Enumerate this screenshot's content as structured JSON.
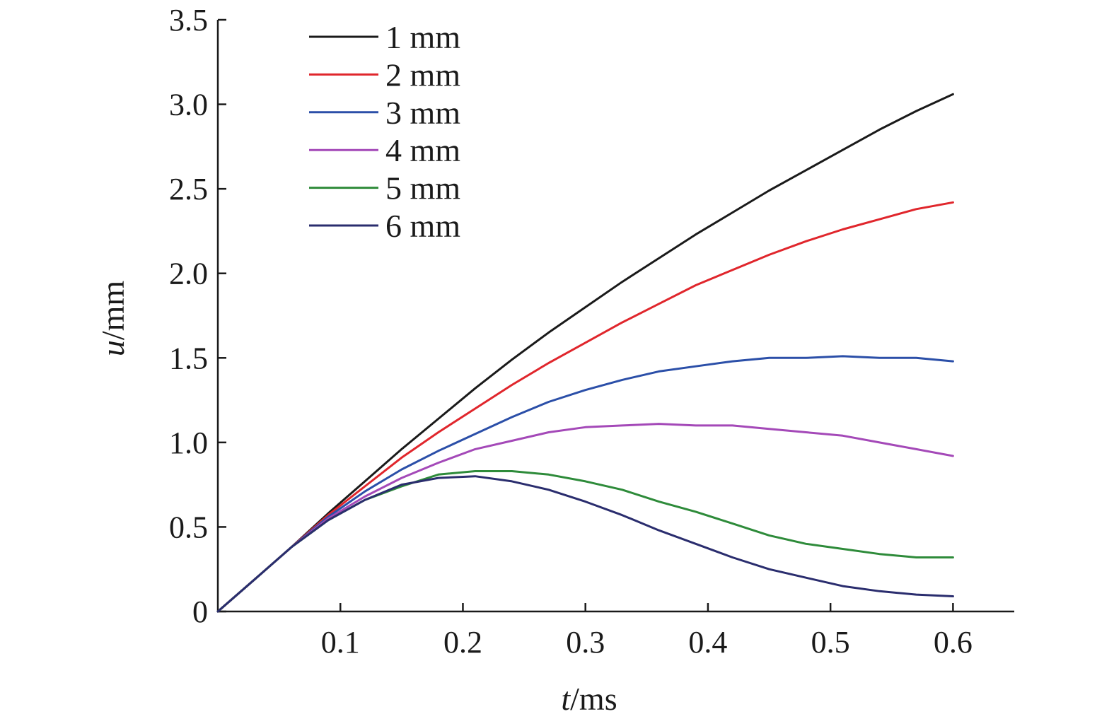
{
  "chart_data": {
    "type": "line",
    "title": "",
    "xlabel": {
      "italic": "t",
      "unit": "/ms"
    },
    "ylabel": {
      "italic": "u",
      "unit": "/mm"
    },
    "xlim": [
      0,
      0.65
    ],
    "ylim": [
      0,
      3.5
    ],
    "xticks": [
      0.1,
      0.2,
      0.3,
      0.4,
      0.5,
      0.6
    ],
    "xtick_labels": [
      "0.1",
      "0.2",
      "0.3",
      "0.4",
      "0.5",
      "0.6"
    ],
    "yticks": [
      0,
      0.5,
      1.0,
      1.5,
      2.0,
      2.5,
      3.0,
      3.5
    ],
    "ytick_labels": [
      "0",
      "0.5",
      "1.0",
      "1.5",
      "2.0",
      "2.5",
      "3.0",
      "3.5"
    ],
    "grid": false,
    "legend_position": "top-left",
    "x": [
      0,
      0.03,
      0.06,
      0.09,
      0.12,
      0.15,
      0.18,
      0.21,
      0.24,
      0.27,
      0.3,
      0.33,
      0.36,
      0.39,
      0.42,
      0.45,
      0.48,
      0.51,
      0.54,
      0.57,
      0.6
    ],
    "series": [
      {
        "name": "1 mm",
        "color": "#1a1a1a",
        "values": [
          0,
          0.19,
          0.38,
          0.58,
          0.77,
          0.96,
          1.14,
          1.32,
          1.49,
          1.65,
          1.8,
          1.95,
          2.09,
          2.23,
          2.36,
          2.49,
          2.61,
          2.73,
          2.85,
          2.96,
          3.06
        ]
      },
      {
        "name": "2 mm",
        "color": "#e0262c",
        "values": [
          0,
          0.19,
          0.38,
          0.57,
          0.74,
          0.91,
          1.06,
          1.2,
          1.34,
          1.47,
          1.59,
          1.71,
          1.82,
          1.93,
          2.02,
          2.11,
          2.19,
          2.26,
          2.32,
          2.38,
          2.42
        ]
      },
      {
        "name": "3 mm",
        "color": "#2b4fa8",
        "values": [
          0,
          0.19,
          0.38,
          0.56,
          0.71,
          0.84,
          0.95,
          1.05,
          1.15,
          1.24,
          1.31,
          1.37,
          1.42,
          1.45,
          1.48,
          1.5,
          1.5,
          1.51,
          1.5,
          1.5,
          1.48
        ]
      },
      {
        "name": "4 mm",
        "color": "#a449b8",
        "values": [
          0,
          0.19,
          0.38,
          0.55,
          0.68,
          0.79,
          0.88,
          0.96,
          1.01,
          1.06,
          1.09,
          1.1,
          1.11,
          1.1,
          1.1,
          1.08,
          1.06,
          1.04,
          1.0,
          0.96,
          0.92
        ]
      },
      {
        "name": "5 mm",
        "color": "#2e8b3a",
        "values": [
          0,
          0.19,
          0.38,
          0.54,
          0.66,
          0.74,
          0.81,
          0.83,
          0.83,
          0.81,
          0.77,
          0.72,
          0.65,
          0.59,
          0.52,
          0.45,
          0.4,
          0.37,
          0.34,
          0.32,
          0.32
        ]
      },
      {
        "name": "6 mm",
        "color": "#2a2d6e",
        "values": [
          0,
          0.19,
          0.38,
          0.54,
          0.66,
          0.75,
          0.79,
          0.8,
          0.77,
          0.72,
          0.65,
          0.57,
          0.48,
          0.4,
          0.32,
          0.25,
          0.2,
          0.15,
          0.12,
          0.1,
          0.09
        ]
      }
    ]
  }
}
